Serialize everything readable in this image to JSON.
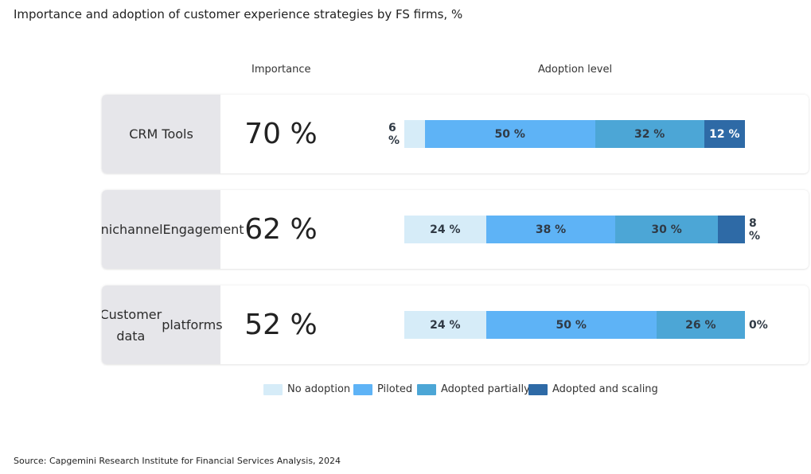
{
  "title": "Importance and adoption of customer experience strategies by FS firms, %",
  "headers": {
    "importance": "Importance",
    "adoption": "Adoption level"
  },
  "source": "Source: Capgemini Research Institute for Financial Services Analysis, 2024",
  "colors": {
    "no_adoption": "#d6ecf8",
    "piloted": "#5eb3f6",
    "adopted_partially": "#4ca6d6",
    "adopted_scaling": "#2e6aa6"
  },
  "chart_data": {
    "type": "bar",
    "stacked": true,
    "categories": [
      "CRM Tools",
      "Omnichannel Engagement",
      "Customer data platforms"
    ],
    "category_lines": [
      [
        "CRM Tools"
      ],
      [
        "Omnichannel",
        "Engagement"
      ],
      [
        "Customer data",
        "platforms"
      ]
    ],
    "importance": [
      70,
      62,
      52
    ],
    "importance_labels": [
      "70 %",
      "62 %",
      "52 %"
    ],
    "series": [
      {
        "name": "No adoption",
        "values": [
          6,
          24,
          24
        ],
        "labels": [
          "6 %",
          "24 %",
          "24 %"
        ]
      },
      {
        "name": "Piloted",
        "values": [
          50,
          38,
          50
        ],
        "labels": [
          "50 %",
          "38 %",
          "50 %"
        ]
      },
      {
        "name": "Adopted partially",
        "values": [
          32,
          30,
          26
        ],
        "labels": [
          "32 %",
          "30 %",
          "26 %"
        ]
      },
      {
        "name": "Adopted and scaling",
        "values": [
          12,
          8,
          0
        ],
        "labels": [
          "12 %",
          "8 %",
          "0%"
        ]
      }
    ],
    "xlim": [
      0,
      100
    ]
  }
}
